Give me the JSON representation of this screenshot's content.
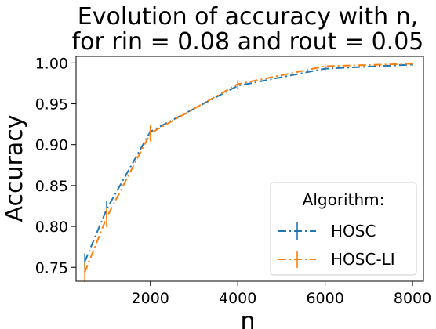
{
  "chart_data": {
    "type": "line",
    "title_line1": "Evolution of accuracy with n,",
    "title_line2": "for rin = 0.08 and rout = 0.05",
    "xlabel": "n",
    "ylabel": "Accuracy",
    "xlim": [
      300,
      8250
    ],
    "ylim": [
      0.733,
      1.008
    ],
    "xticks": [
      2000,
      4000,
      6000,
      8000
    ],
    "yticks": [
      0.75,
      0.8,
      0.85,
      0.9,
      0.95,
      1.0
    ],
    "ytick_labels": [
      "0.75",
      "0.80",
      "0.85",
      "0.90",
      "0.95",
      "1.00"
    ],
    "grid": false,
    "legend": {
      "title": "Algorithm:",
      "placement": "lower-right"
    },
    "series": [
      {
        "name": "HOSC",
        "color": "#1f77b4",
        "line_style": "dashdot",
        "x": [
          500,
          1000,
          2000,
          4000,
          6000,
          8000
        ],
        "values": [
          0.757,
          0.821,
          0.916,
          0.972,
          0.993,
          0.998
        ],
        "errors": [
          0.01,
          0.01,
          0.007,
          0.004,
          0.002,
          0.001
        ]
      },
      {
        "name": "HOSC-LI",
        "color": "#ff7f0e",
        "line_style": "dashdot",
        "x": [
          500,
          1000,
          2000,
          4000,
          6000,
          8000
        ],
        "values": [
          0.744,
          0.811,
          0.914,
          0.974,
          0.996,
          0.999
        ],
        "errors": [
          0.012,
          0.012,
          0.01,
          0.005,
          0.002,
          0.001
        ]
      }
    ]
  }
}
